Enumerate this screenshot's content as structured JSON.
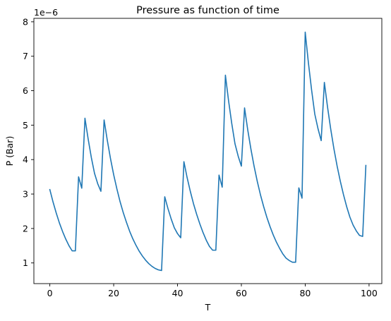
{
  "chart_data": {
    "type": "line",
    "title": "Pressure as function of time",
    "xlabel": "T",
    "ylabel": "P (Bar)",
    "y_offset_label": "1e−6",
    "xlim": [
      -5,
      104
    ],
    "ylim": [
      0.4,
      8.1
    ],
    "xticks": [
      0,
      20,
      40,
      60,
      80,
      100
    ],
    "yticks": [
      1,
      2,
      3,
      4,
      5,
      6,
      7,
      8
    ],
    "grid": false,
    "line_color": "#1f77b4",
    "series": [
      {
        "x": [
          0,
          1,
          2,
          3,
          4,
          5,
          6,
          7,
          8,
          9,
          10,
          11,
          12,
          13,
          14,
          15,
          16,
          17,
          18,
          19,
          20,
          21,
          22,
          23,
          24,
          25,
          26,
          27,
          28,
          29,
          30,
          31,
          32,
          33,
          34,
          35,
          36,
          37,
          38,
          39,
          40,
          41,
          42,
          43,
          44,
          45,
          46,
          47,
          48,
          49,
          50,
          51,
          52,
          53,
          54,
          55,
          56,
          57,
          58,
          59,
          60,
          61,
          62,
          63,
          64,
          65,
          66,
          67,
          68,
          69,
          70,
          71,
          72,
          73,
          74,
          75,
          76,
          77,
          78,
          79,
          80,
          81,
          82,
          83,
          84,
          85,
          86,
          87,
          88,
          89,
          90,
          91,
          92,
          93,
          94,
          95,
          96,
          97,
          98,
          99
        ],
        "y": [
          3.13,
          2.77,
          2.45,
          2.16,
          1.91,
          1.69,
          1.5,
          1.35,
          1.35,
          3.5,
          3.17,
          5.2,
          4.6,
          4.06,
          3.6,
          3.3,
          3.08,
          5.15,
          4.56,
          4.03,
          3.56,
          3.15,
          2.78,
          2.46,
          2.18,
          1.92,
          1.7,
          1.51,
          1.34,
          1.2,
          1.08,
          0.98,
          0.9,
          0.84,
          0.8,
          0.78,
          2.92,
          2.58,
          2.28,
          2.02,
          1.85,
          1.73,
          3.94,
          3.48,
          3.08,
          2.72,
          2.41,
          2.13,
          1.88,
          1.66,
          1.48,
          1.37,
          1.37,
          3.55,
          3.2,
          6.45,
          5.7,
          5.04,
          4.46,
          4.1,
          3.81,
          5.5,
          4.86,
          4.3,
          3.8,
          3.36,
          2.97,
          2.63,
          2.32,
          2.05,
          1.81,
          1.6,
          1.42,
          1.26,
          1.14,
          1.07,
          1.02,
          1.02,
          3.18,
          2.88,
          7.7,
          6.81,
          6.02,
          5.32,
          4.9,
          4.55,
          6.24,
          5.52,
          4.88,
          4.31,
          3.81,
          3.37,
          2.98,
          2.63,
          2.33,
          2.1,
          1.93,
          1.8,
          1.77,
          3.83
        ]
      }
    ]
  }
}
